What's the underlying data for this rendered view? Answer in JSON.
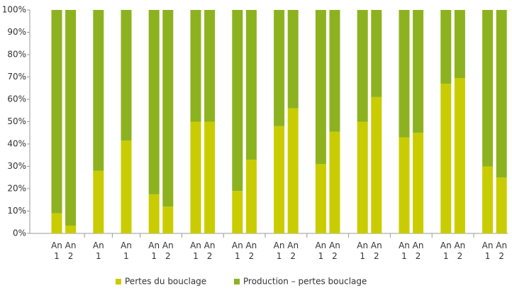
{
  "chart_data": {
    "type": "stacked_bar",
    "categories": [
      "An 1",
      "An 2",
      null,
      "An 1",
      null,
      "An 1",
      null,
      "An 1",
      "An 2",
      null,
      "An 1",
      "An 2",
      null,
      "An 1",
      "An 2",
      null,
      "An 1",
      "An 2",
      null,
      "An 1",
      "An 2",
      null,
      "An 1",
      "An 2",
      null,
      "An 1",
      "An 2",
      null,
      "An 1",
      "An 2",
      null,
      "An 1",
      "An 2"
    ],
    "series": [
      {
        "name": "Pertes du bouclage",
        "color": "#c9cc00",
        "values": [
          9,
          3.5,
          null,
          28,
          null,
          41.5,
          null,
          17.5,
          12,
          null,
          50,
          50,
          null,
          19,
          33,
          null,
          48,
          56,
          null,
          31,
          45.5,
          null,
          50,
          61,
          null,
          43,
          45,
          null,
          67,
          69.5,
          null,
          30,
          25
        ]
      },
      {
        "name": "Production – pertes bouclage",
        "color": "#8db21f",
        "values": [
          91,
          96.5,
          null,
          72,
          null,
          58.5,
          null,
          82.5,
          88,
          null,
          50,
          50,
          null,
          81,
          67,
          null,
          52,
          44,
          null,
          69,
          54.5,
          null,
          50,
          39,
          null,
          57,
          55,
          null,
          33,
          30.5,
          null,
          70,
          75
        ]
      }
    ],
    "ylim": [
      0,
      100
    ],
    "yticks": [
      {
        "value": 0,
        "label": "0%"
      },
      {
        "value": 10,
        "label": "10%"
      },
      {
        "value": 20,
        "label": "20%"
      },
      {
        "value": 30,
        "label": "30%"
      },
      {
        "value": 40,
        "label": "40%"
      },
      {
        "value": 50,
        "label": "50%"
      },
      {
        "value": 60,
        "label": "60%"
      },
      {
        "value": 70,
        "label": "70%"
      },
      {
        "value": 80,
        "label": "80%"
      },
      {
        "value": 90,
        "label": "90%"
      },
      {
        "value": 100,
        "label": "100%"
      }
    ],
    "legend": "bottom"
  }
}
